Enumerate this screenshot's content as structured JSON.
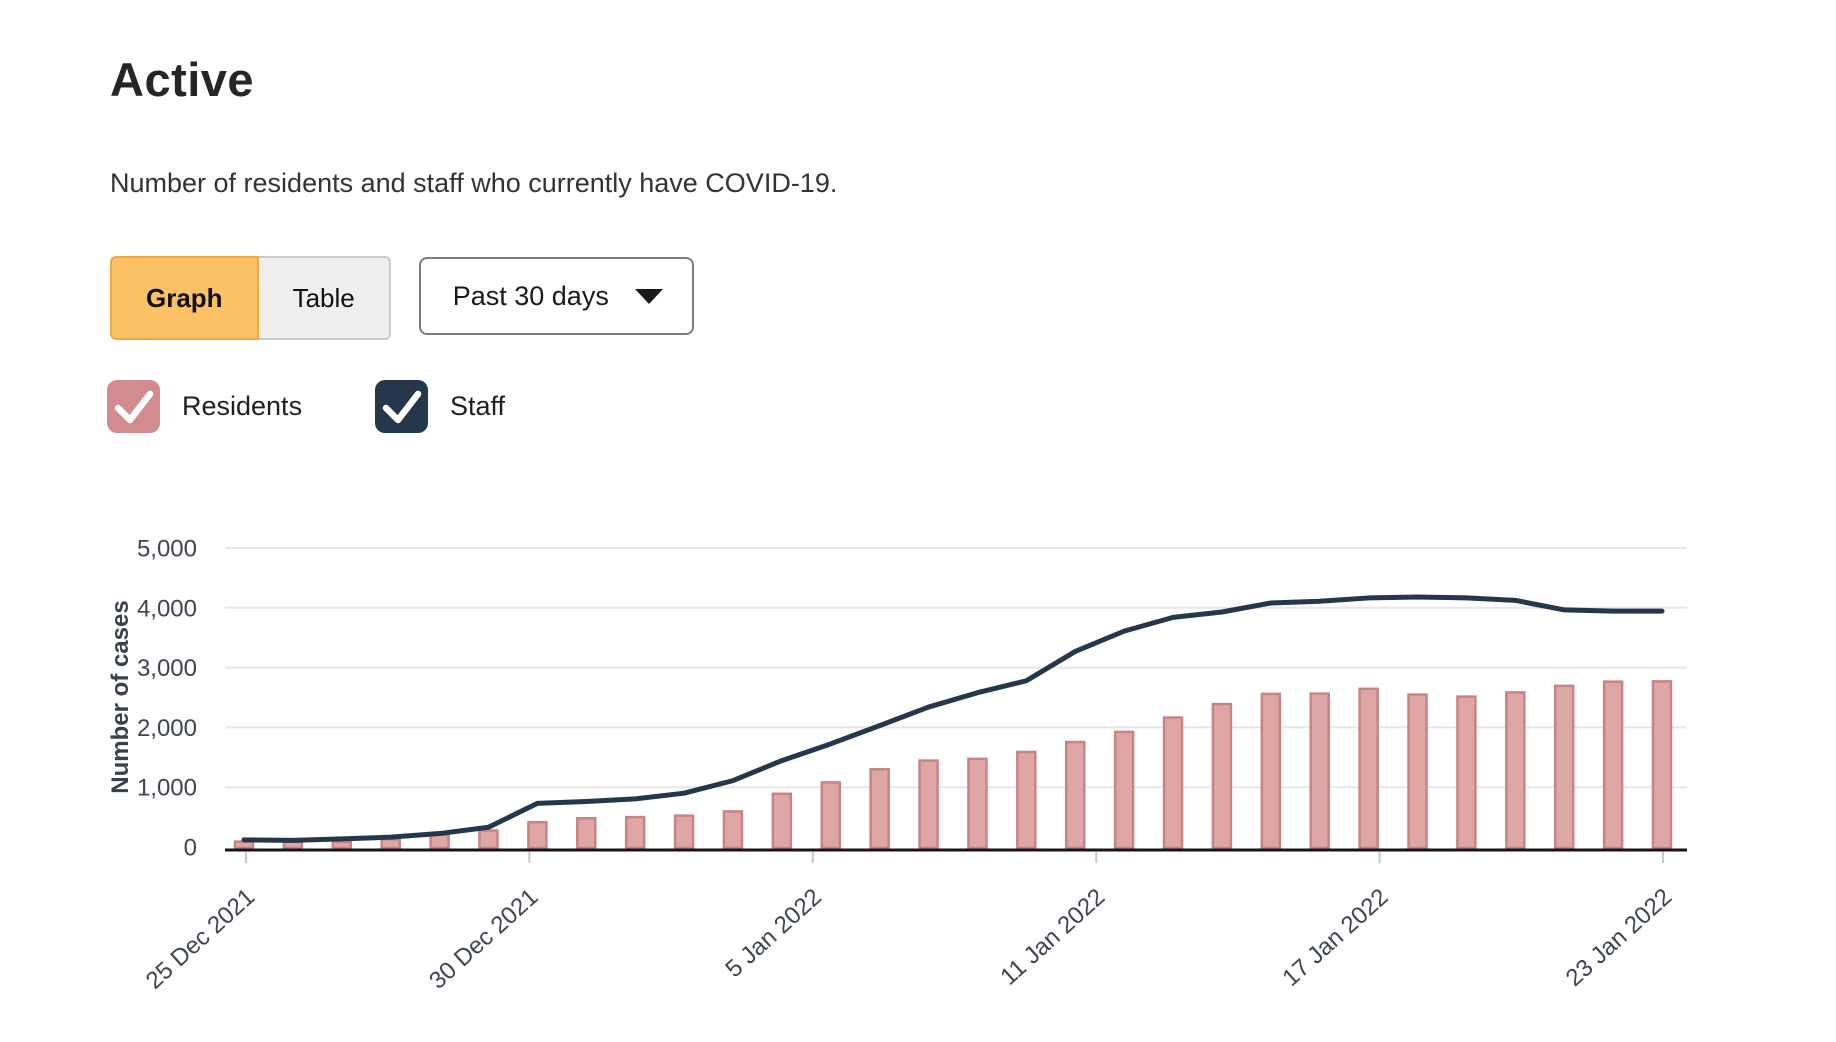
{
  "page": {
    "title": "Active",
    "subtitle": "Number of residents and staff who currently have COVID-19."
  },
  "controls": {
    "view_toggle": [
      {
        "label": "Graph",
        "active": true
      },
      {
        "label": "Table",
        "active": false
      }
    ],
    "range_dropdown": {
      "value": "Past 30 days"
    }
  },
  "legend": [
    {
      "label": "Residents",
      "color": "#d28b8e",
      "checked": true
    },
    {
      "label": "Staff",
      "color": "#25374b",
      "checked": true
    }
  ],
  "colors": {
    "active_tab_bg": "#fbc164",
    "active_tab_border": "#f2a940",
    "inactive_tab_bg": "#efefef",
    "inactive_tab_border": "#cbcbcb",
    "residents_pink": "#d28b8e",
    "staff_navy": "#25374b"
  },
  "chart_data": {
    "type": "bar",
    "title": "",
    "xlabel": "",
    "ylabel": "Number of cases",
    "ylim": [
      0,
      5000
    ],
    "y_ticks": [
      "0",
      "1,000",
      "2,000",
      "3,000",
      "4,000",
      "5,000"
    ],
    "x_tick_labels": [
      "25 Dec 2021",
      "30 Dec 2021",
      "5 Jan 2022",
      "11 Jan 2022",
      "17 Jan 2022",
      "23 Jan 2022"
    ],
    "grid": "horizontal",
    "legend_position": "top-left",
    "categories": [
      "25 Dec 2021",
      "26 Dec 2021",
      "27 Dec 2021",
      "28 Dec 2021",
      "29 Dec 2021",
      "30 Dec 2021",
      "31 Dec 2021",
      "1 Jan 2022",
      "2 Jan 2022",
      "3 Jan 2022",
      "4 Jan 2022",
      "5 Jan 2022",
      "6 Jan 2022",
      "7 Jan 2022",
      "8 Jan 2022",
      "9 Jan 2022",
      "10 Jan 2022",
      "11 Jan 2022",
      "12 Jan 2022",
      "13 Jan 2022",
      "14 Jan 2022",
      "15 Jan 2022",
      "16 Jan 2022",
      "17 Jan 2022",
      "18 Jan 2022",
      "19 Jan 2022",
      "20 Jan 2022",
      "21 Jan 2022",
      "22 Jan 2022",
      "23 Jan 2022"
    ],
    "series": [
      {
        "name": "Residents",
        "type": "bar",
        "fill": "#dea7a6",
        "stroke": "#c98384",
        "values": [
          90,
          85,
          85,
          130,
          205,
          275,
          415,
          480,
          500,
          525,
          595,
          890,
          1080,
          1300,
          1445,
          1475,
          1590,
          1755,
          1925,
          2165,
          2390,
          2560,
          2565,
          2645,
          2550,
          2515,
          2585,
          2695,
          2765,
          2770
        ]
      },
      {
        "name": "Staff",
        "type": "line",
        "color": "#25374b",
        "values": [
          120,
          110,
          135,
          165,
          225,
          330,
          730,
          760,
          805,
          900,
          1110,
          1445,
          1725,
          2030,
          2340,
          2580,
          2780,
          3270,
          3610,
          3840,
          3930,
          4080,
          4110,
          4165,
          4180,
          4165,
          4125,
          3965,
          3945,
          3945
        ]
      }
    ],
    "colors": {
      "gridline": "#e7e7e7",
      "axis": "#161616",
      "tick_mark": "#c9c9c9",
      "tick_text": "#3e454f",
      "axis_label": "#39414d"
    }
  }
}
